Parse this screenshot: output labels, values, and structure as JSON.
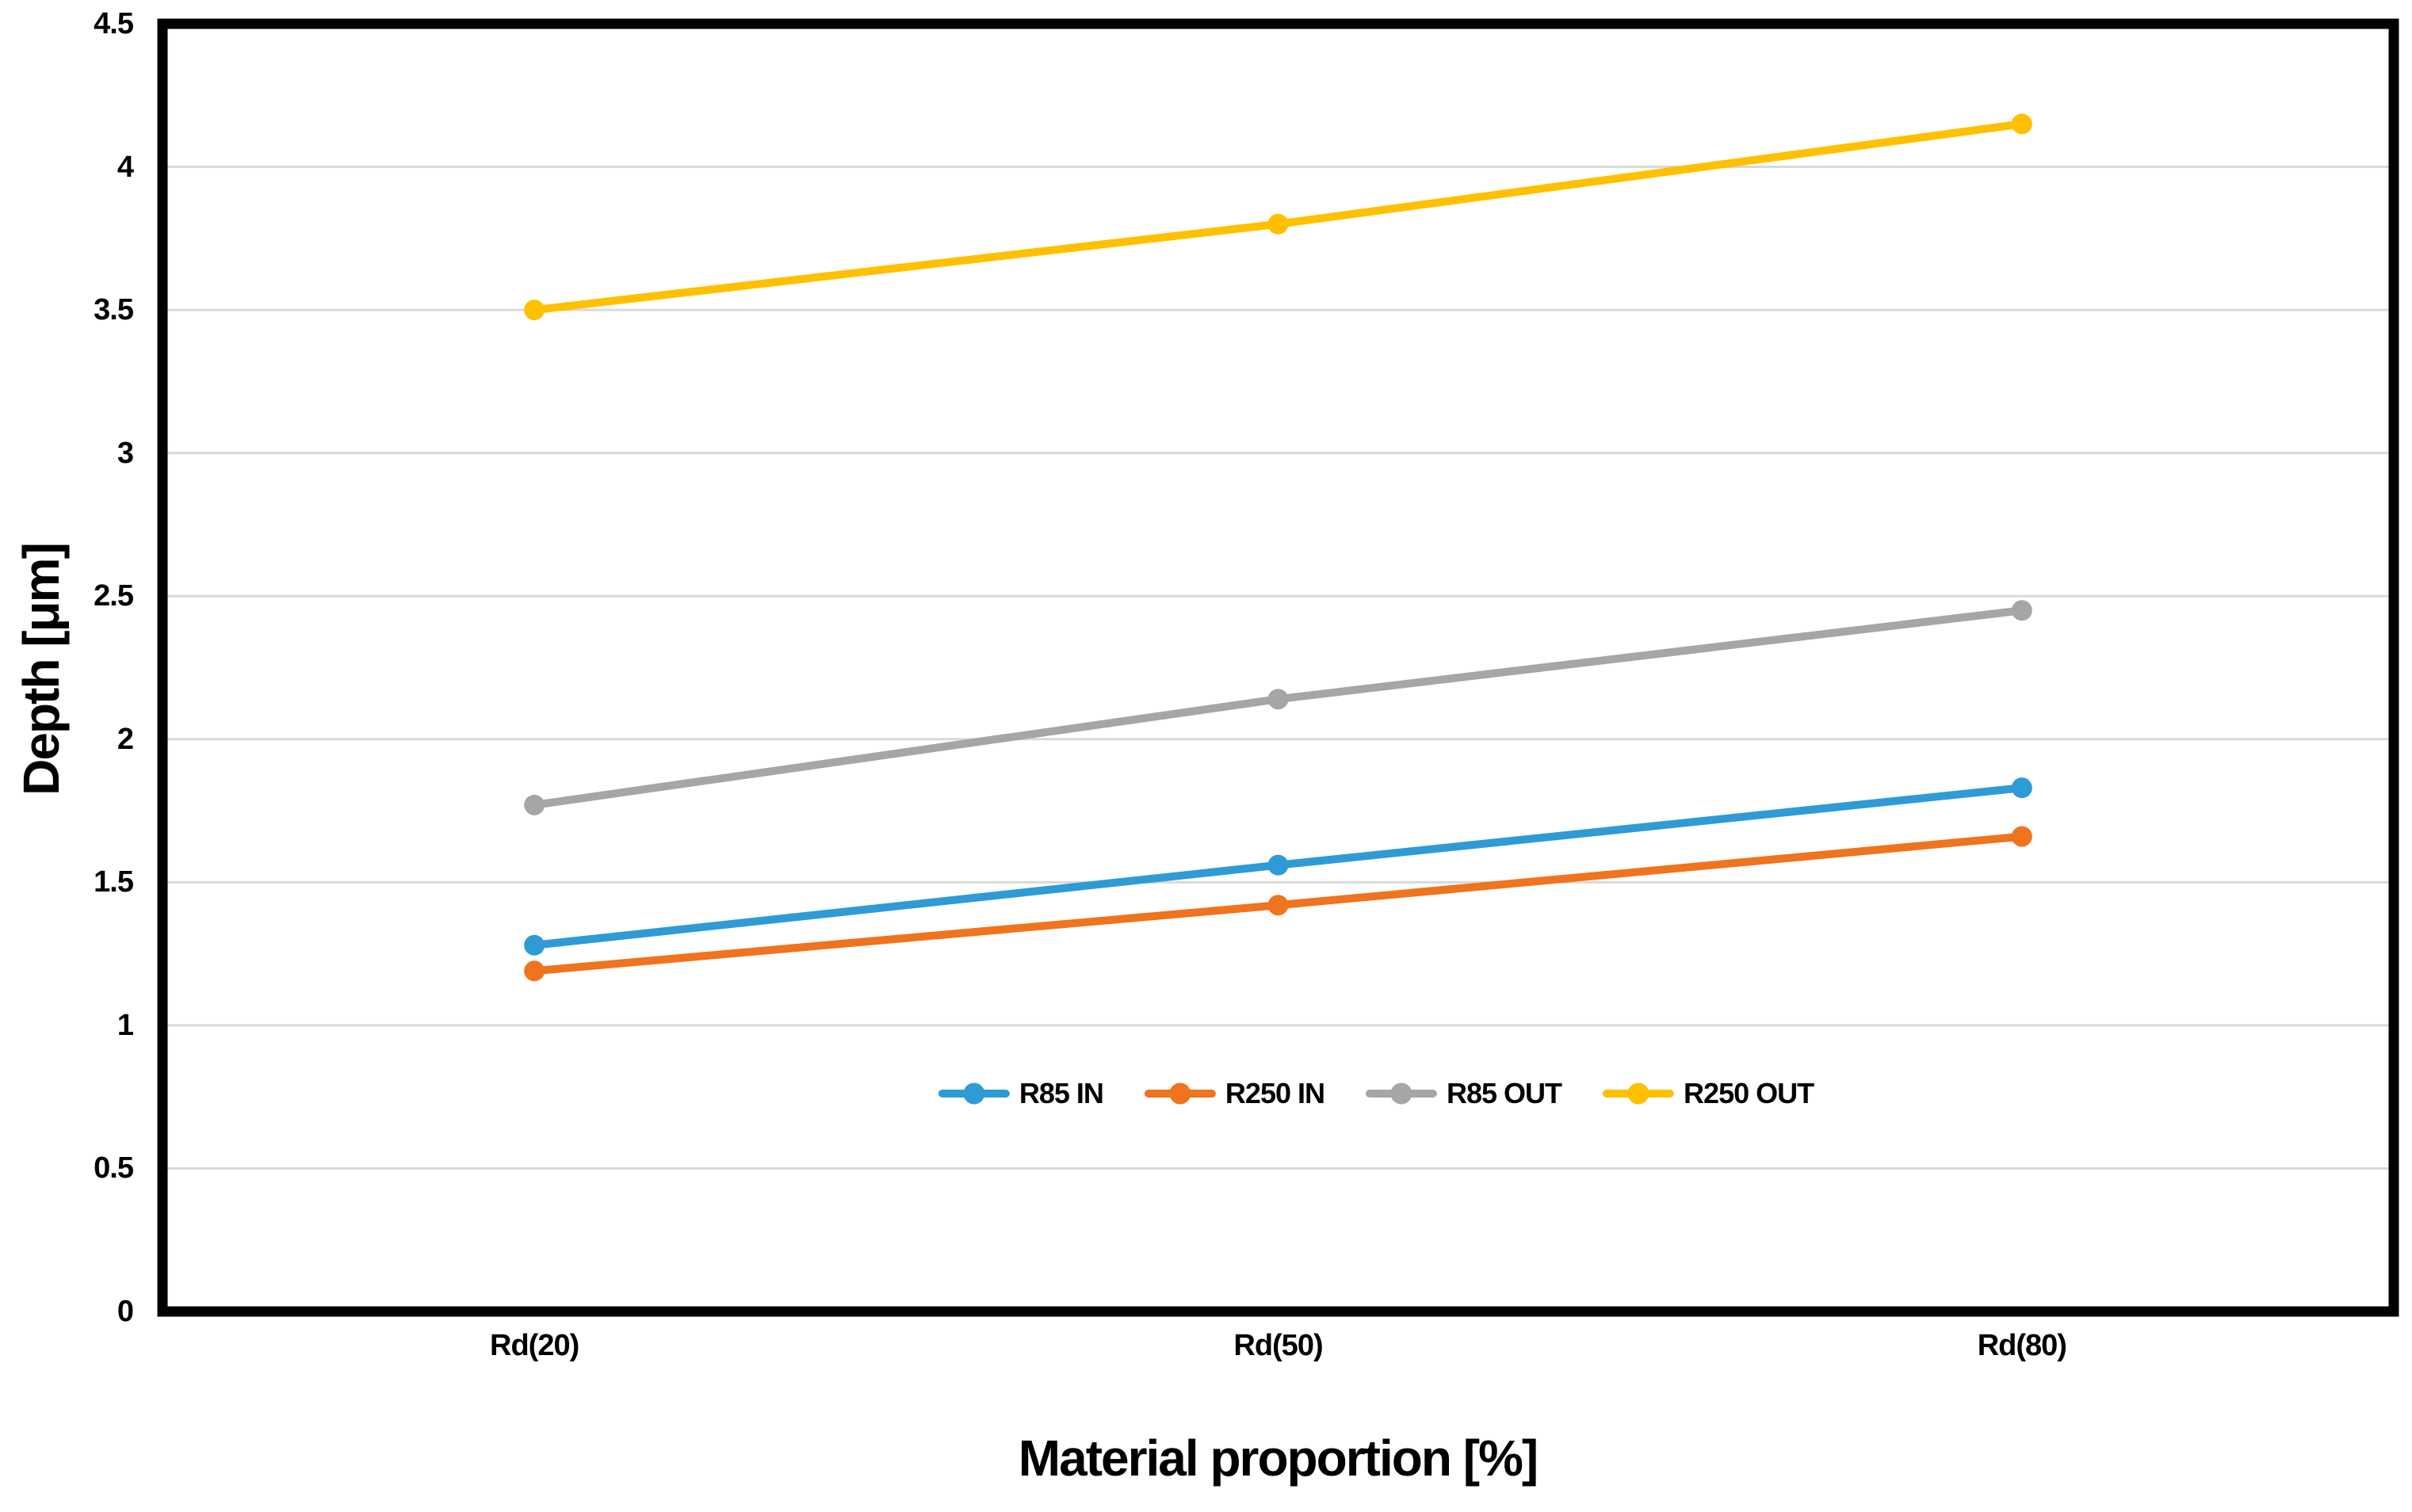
{
  "chart_data": {
    "type": "line",
    "title": "",
    "categories": [
      "Rd(20)",
      "Rd(50)",
      "Rd(80)"
    ],
    "series": [
      {
        "name": "R85 IN",
        "color": "#2E9BD6",
        "values": [
          1.28,
          1.56,
          1.83
        ]
      },
      {
        "name": "R250 IN",
        "color": "#F0731D",
        "values": [
          1.19,
          1.42,
          1.66
        ]
      },
      {
        "name": "R85 OUT",
        "color": "#A6A6A6",
        "values": [
          1.77,
          2.14,
          2.45
        ]
      },
      {
        "name": "R250 OUT",
        "color": "#FFC000",
        "values": [
          3.5,
          3.8,
          4.15
        ]
      }
    ],
    "xlabel": "Material proportion [%]",
    "ylabel": "Depth [μm]",
    "ylim": [
      0,
      4.5
    ],
    "ytick_step": 0.5,
    "ytick_labels": [
      "0",
      "0.5",
      "1",
      "1.5",
      "2",
      "2.5",
      "3",
      "3.5",
      "4",
      "4.5"
    ],
    "grid": "horizontal",
    "gridline_color": "#D9D9D9",
    "axis_color": "#000000",
    "legend_position": "inside-bottom-center",
    "marker_shape": "circle"
  }
}
